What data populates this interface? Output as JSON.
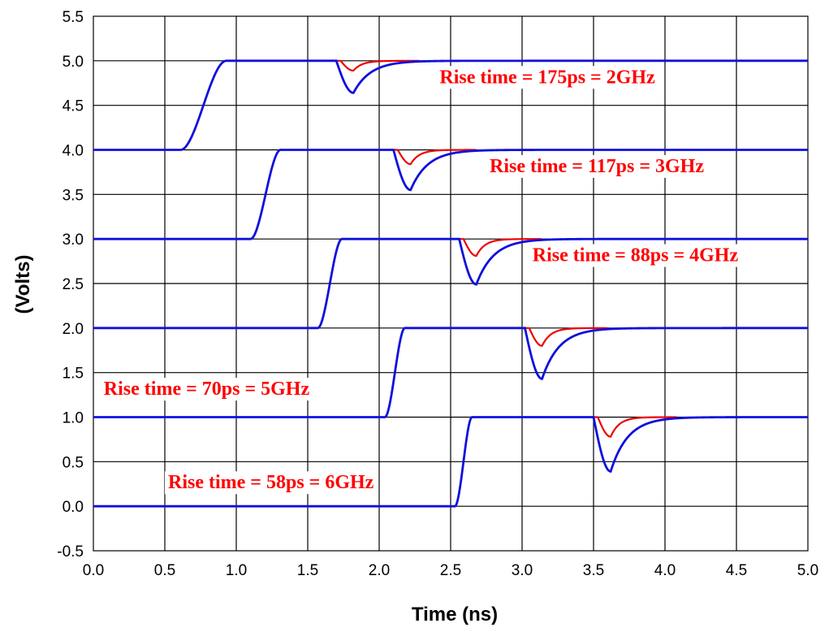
{
  "chart_data": {
    "type": "line",
    "title": "",
    "xlabel": "Time (ns)",
    "ylabel": "(Volts)",
    "xlim": [
      0.0,
      5.0
    ],
    "ylim": [
      -0.5,
      5.5
    ],
    "x_ticks": [
      "0.0",
      "0.5",
      "1.0",
      "1.5",
      "2.0",
      "2.5",
      "3.0",
      "3.5",
      "4.0",
      "4.5",
      "5.0"
    ],
    "y_ticks": [
      "5.5",
      "5.0",
      "4.5",
      "4.0",
      "3.5",
      "3.0",
      "2.5",
      "2.0",
      "1.5",
      "1.0",
      "0.5",
      "0.0",
      "-0.5"
    ],
    "grid": true,
    "colors": {
      "blue": "#1010dd",
      "red": "#ee0000",
      "annotation": "#ff0000"
    },
    "series": [
      {
        "color": "blue",
        "rise_start_ns": 0.61,
        "rise_end_ns": 0.93,
        "low_v": 4.0,
        "high_v": 5.0,
        "dip_time_ns": 1.82,
        "blue_dip_min_v": 4.64,
        "red_dip_min_v": 4.89,
        "label": "Rise time = 175ps = 2GHz"
      },
      {
        "color": "blue",
        "rise_start_ns": 1.1,
        "rise_end_ns": 1.31,
        "low_v": 3.0,
        "high_v": 4.0,
        "dip_time_ns": 2.22,
        "blue_dip_min_v": 3.55,
        "red_dip_min_v": 3.84,
        "label": "Rise time = 117ps = 3GHz"
      },
      {
        "color": "blue",
        "rise_start_ns": 1.57,
        "rise_end_ns": 1.74,
        "low_v": 2.0,
        "high_v": 3.0,
        "dip_time_ns": 2.68,
        "blue_dip_min_v": 2.49,
        "red_dip_min_v": 2.81,
        "label": "Rise time = 88ps = 4GHz"
      },
      {
        "color": "blue",
        "rise_start_ns": 2.04,
        "rise_end_ns": 2.18,
        "low_v": 1.0,
        "high_v": 2.0,
        "dip_time_ns": 3.14,
        "blue_dip_min_v": 1.43,
        "red_dip_min_v": 1.8,
        "label": "Rise time = 70ps = 5GHz"
      },
      {
        "color": "blue",
        "rise_start_ns": 2.53,
        "rise_end_ns": 2.65,
        "low_v": 0.0,
        "high_v": 1.0,
        "dip_time_ns": 3.62,
        "blue_dip_min_v": 0.39,
        "red_dip_min_v": 0.78,
        "label": "Rise time = 58ps = 6GHz"
      }
    ],
    "annotations": [
      {
        "text": "Rise time = 175ps = 2GHz",
        "x": 2.4,
        "y": 4.75
      },
      {
        "text": "Rise time = 117ps = 3GHz",
        "x": 2.75,
        "y": 3.75
      },
      {
        "text": "Rise time = 88ps = 4GHz",
        "x": 3.05,
        "y": 2.75
      },
      {
        "text": "Rise time = 70ps = 5GHz",
        "x": 0.05,
        "y": 1.25
      },
      {
        "text": "Rise time = 58ps = 6GHz",
        "x": 0.5,
        "y": 0.2
      }
    ]
  }
}
